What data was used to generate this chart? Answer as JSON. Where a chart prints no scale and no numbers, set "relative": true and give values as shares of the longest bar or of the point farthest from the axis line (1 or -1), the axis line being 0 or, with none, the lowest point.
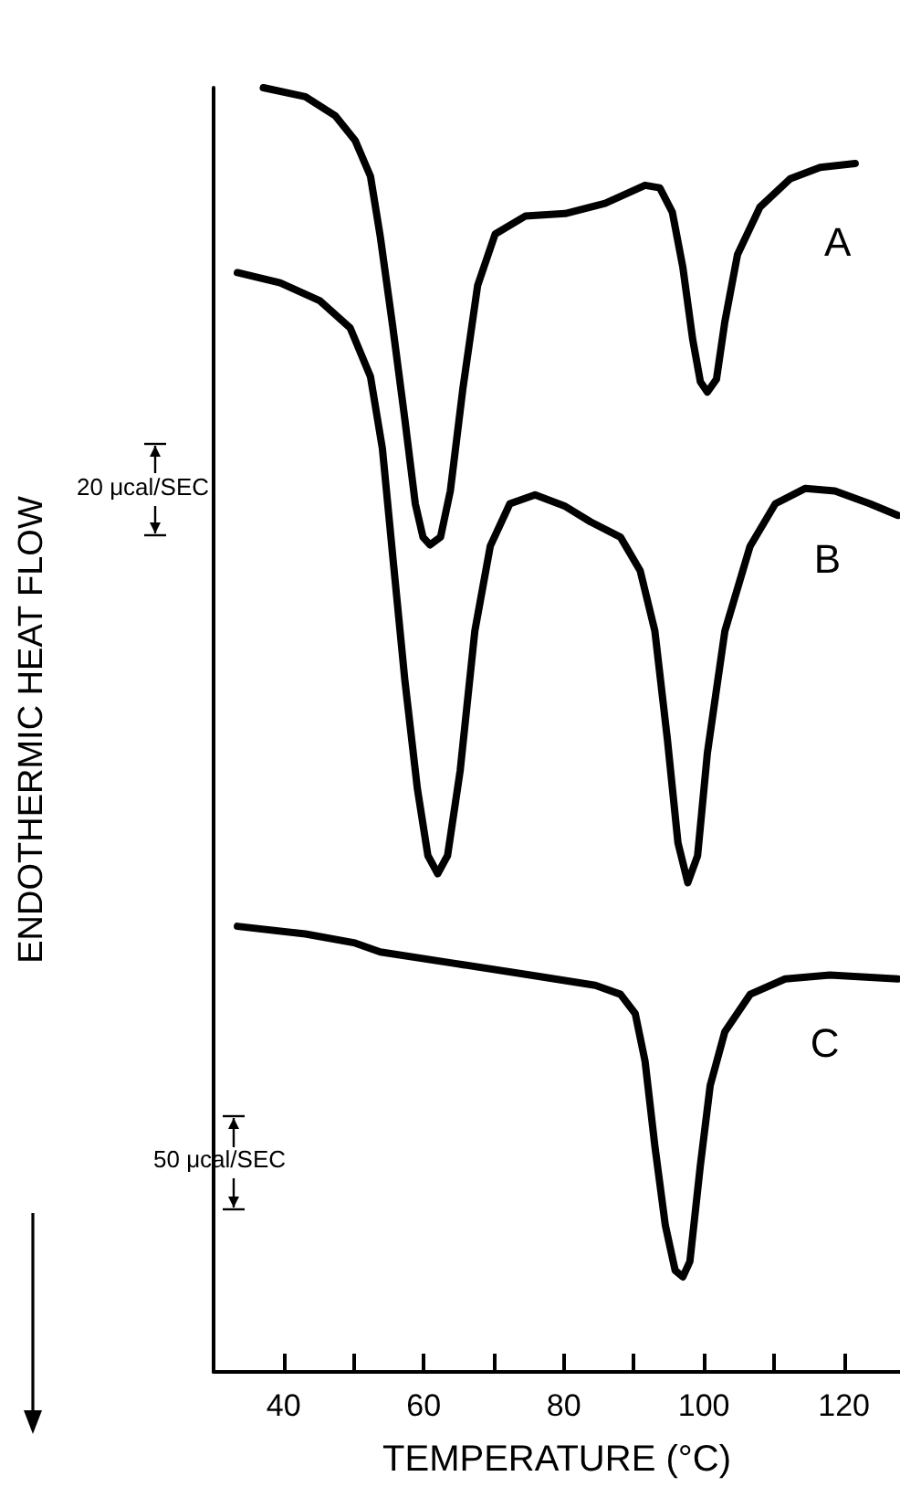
{
  "chart_data": {
    "type": "line",
    "xlabel": "TEMPERATURE (°C)",
    "ylabel": "ENDOTHERMIC HEAT FLOW",
    "relative": true,
    "xlim": [
      30,
      128
    ],
    "xticks": [
      40,
      {
        "value": 50,
        "label": null
      },
      60,
      {
        "value": 70,
        "label": null
      },
      80,
      {
        "value": 90,
        "label": null
      },
      100,
      {
        "value": 110,
        "label": null
      },
      120
    ],
    "grid": false,
    "legend": false,
    "marker": "none",
    "line_style": "solid",
    "annotations": [
      "20 μcal/SEC",
      "50 μcal/SEC"
    ],
    "series": [
      {
        "name": "A",
        "color": "#000000",
        "x": [
          37.1,
          43.1,
          47.4,
          50.2,
          52.4,
          53.8,
          55.6,
          57.3,
          58.8,
          59.9,
          60.9,
          62.4,
          63.8,
          65.6,
          67.7,
          70.2,
          74.5,
          80.2,
          85.9,
          91.6,
          93.7,
          95.5,
          97.0,
          98.4,
          99.5,
          100.5,
          101.8,
          103.0,
          104.8,
          108.0,
          112.3,
          116.6,
          121.6
        ],
        "values": [
          1.0,
          0.993,
          0.978,
          0.959,
          0.931,
          0.884,
          0.813,
          0.742,
          0.676,
          0.65,
          0.644,
          0.65,
          0.686,
          0.766,
          0.846,
          0.886,
          0.9,
          0.902,
          0.91,
          0.924,
          0.922,
          0.903,
          0.86,
          0.804,
          0.771,
          0.763,
          0.773,
          0.818,
          0.87,
          0.907,
          0.929,
          0.938,
          0.941
        ]
      },
      {
        "name": "B",
        "color": "#000000",
        "x": [
          33.4,
          39.5,
          45.2,
          49.5,
          52.4,
          54.1,
          55.6,
          57.3,
          59.1,
          60.6,
          62.0,
          63.4,
          65.2,
          67.3,
          69.5,
          72.3,
          75.9,
          80.2,
          83.8,
          88.1,
          90.9,
          93.0,
          94.8,
          96.3,
          97.7,
          99.1,
          100.5,
          103.0,
          106.6,
          110.2,
          114.5,
          118.7,
          123.7,
          127.7
        ],
        "values": [
          0.856,
          0.848,
          0.834,
          0.813,
          0.775,
          0.719,
          0.634,
          0.539,
          0.454,
          0.402,
          0.388,
          0.402,
          0.468,
          0.577,
          0.643,
          0.676,
          0.683,
          0.674,
          0.662,
          0.65,
          0.624,
          0.577,
          0.492,
          0.412,
          0.381,
          0.402,
          0.482,
          0.577,
          0.643,
          0.676,
          0.688,
          0.686,
          0.676,
          0.667
        ]
      },
      {
        "name": "C",
        "color": "#000000",
        "x": [
          33.4,
          43.1,
          50.2,
          53.8,
          64.5,
          75.2,
          84.5,
          88.1,
          90.2,
          91.6,
          93.0,
          94.5,
          95.9,
          97.0,
          98.0,
          99.5,
          100.9,
          103.0,
          106.6,
          111.6,
          118.0,
          127.7
        ],
        "values": [
          0.347,
          0.341,
          0.334,
          0.327,
          0.318,
          0.309,
          0.301,
          0.294,
          0.279,
          0.242,
          0.176,
          0.114,
          0.079,
          0.074,
          0.086,
          0.161,
          0.223,
          0.265,
          0.294,
          0.306,
          0.309,
          0.306
        ]
      }
    ]
  }
}
